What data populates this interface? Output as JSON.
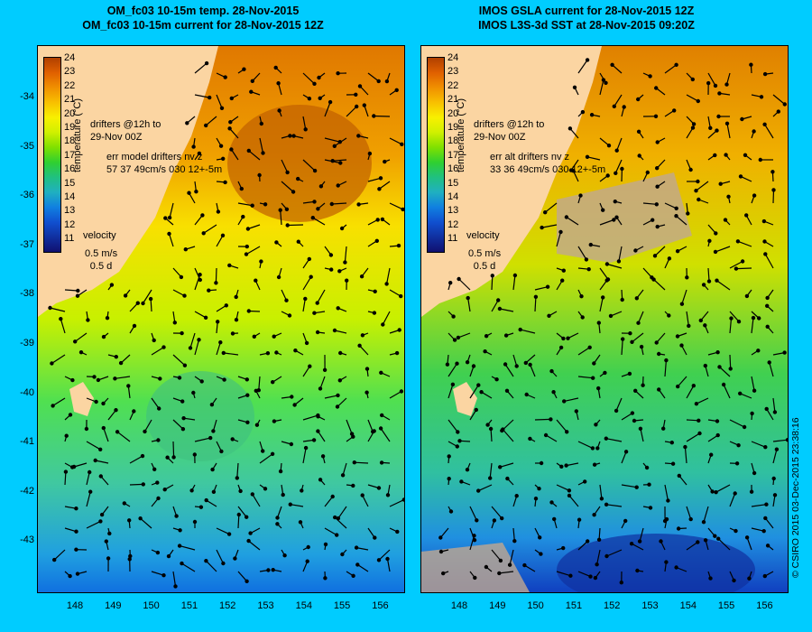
{
  "left_panel": {
    "title_line1": "OM_fc03 10-15m temp. 28-Nov-2015",
    "title_line2": "OM_fc03 10-15m current for 28-Nov-2015 12Z",
    "drifters_text": "drifters @12h to\n29-Nov 00Z",
    "err_text": "err model drifters nv z\n57 37 49cm/s 030 12+-5m",
    "velocity_label": "velocity",
    "velocity_scale": "0.5 m/s\n0.5 d"
  },
  "right_panel": {
    "title_line1": "IMOS GSLA current for 28-Nov-2015 12Z",
    "title_line2": "IMOS L3S-3d SST at 28-Nov-2015 09:20Z",
    "drifters_text": "drifters @12h to\n29-Nov 00Z",
    "err_text": "err alt drifters nv z\n33 36 49cm/s 030 12+-5m",
    "velocity_label": "velocity",
    "velocity_scale": "0.5 m/s\n0.5 d"
  },
  "colorbar": {
    "title": "temperature (°C)",
    "labels": [
      "24",
      "23",
      "22",
      "21",
      "20",
      "19",
      "18",
      "17",
      "16",
      "15",
      "14",
      "13",
      "12",
      "11"
    ]
  },
  "axes": {
    "lat_ticks": [
      "-34",
      "-35",
      "-36",
      "-37",
      "-38",
      "-39",
      "-40",
      "-41",
      "-42",
      "-43"
    ],
    "lon_ticks": [
      "148",
      "149",
      "150",
      "151",
      "152",
      "153",
      "154",
      "155",
      "156"
    ]
  },
  "copyright": "© CSIRO 2015   03-Dec-2015 23:38:16",
  "colors": {
    "background": "#00ccff",
    "land": "#fbd5a2",
    "drifter": "#ff33ff",
    "no_data": "#c0a890"
  }
}
